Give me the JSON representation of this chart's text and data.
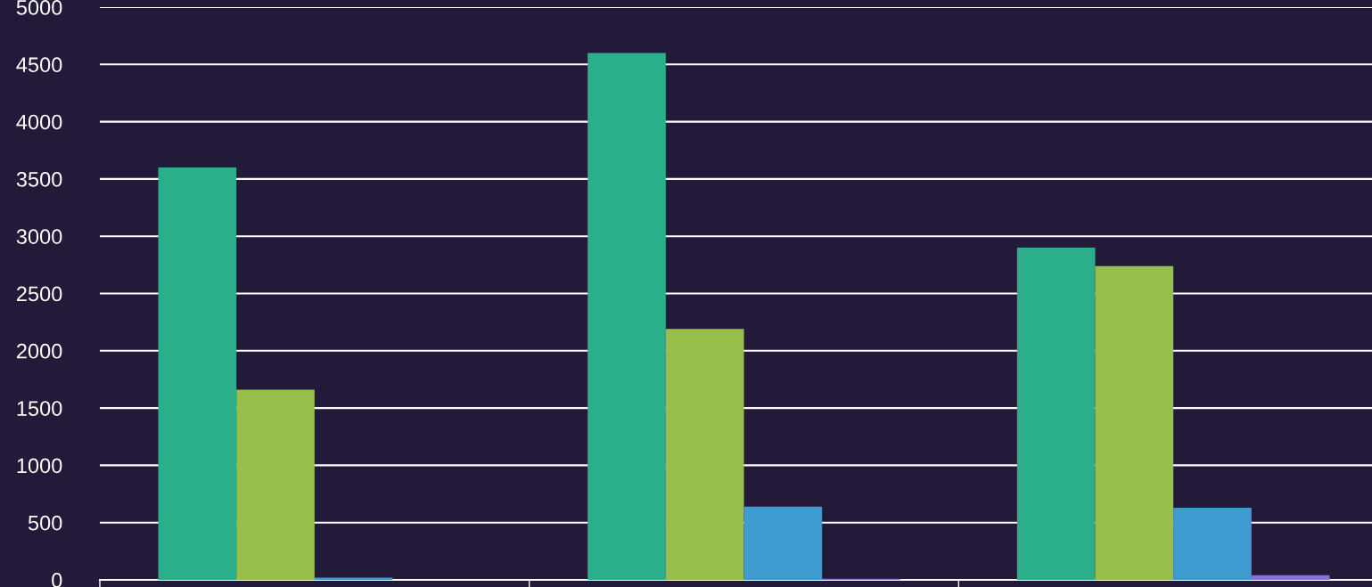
{
  "chart_data": {
    "type": "bar",
    "categories": [
      null,
      null,
      null
    ],
    "series": [
      {
        "color": "#2aaf8a",
        "values": [
          3600,
          4600,
          2900
        ]
      },
      {
        "color": "#98bf4a",
        "values": [
          1660,
          2190,
          2740
        ]
      },
      {
        "color": "#3d9bd0",
        "values": [
          20,
          640,
          630
        ]
      },
      {
        "color": "#8a6fd8",
        "values": [
          0,
          10,
          40
        ]
      }
    ],
    "ylim": [
      0,
      5000
    ],
    "yticks": [
      0,
      500,
      1000,
      1500,
      2000,
      2500,
      3000,
      3500,
      4000,
      4500,
      5000
    ],
    "grid": "y",
    "legend": false
  }
}
